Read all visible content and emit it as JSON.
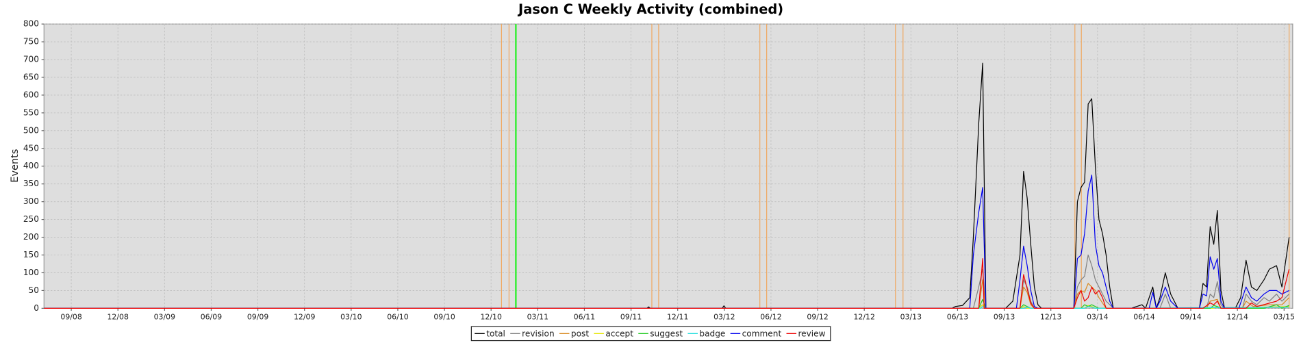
{
  "chart_data": {
    "type": "line",
    "title": "Jason C Weekly Activity (combined)",
    "ylabel": "Events",
    "xlim": [
      0,
      348
    ],
    "ylim": [
      0,
      800
    ],
    "yticks": [
      0,
      50,
      100,
      150,
      200,
      250,
      300,
      350,
      400,
      450,
      500,
      550,
      600,
      650,
      700,
      750,
      800
    ],
    "xticks": [
      {
        "value": 7.6,
        "label": "09/08"
      },
      {
        "value": 20.6,
        "label": "12/08"
      },
      {
        "value": 33.6,
        "label": "03/09"
      },
      {
        "value": 46.6,
        "label": "06/09"
      },
      {
        "value": 59.6,
        "label": "09/09"
      },
      {
        "value": 72.6,
        "label": "12/09"
      },
      {
        "value": 85.6,
        "label": "03/10"
      },
      {
        "value": 98.6,
        "label": "06/10"
      },
      {
        "value": 111.6,
        "label": "09/10"
      },
      {
        "value": 124.6,
        "label": "12/10"
      },
      {
        "value": 137.6,
        "label": "03/11"
      },
      {
        "value": 150.6,
        "label": "06/11"
      },
      {
        "value": 163.6,
        "label": "09/11"
      },
      {
        "value": 176.6,
        "label": "12/11"
      },
      {
        "value": 189.6,
        "label": "03/12"
      },
      {
        "value": 202.6,
        "label": "06/12"
      },
      {
        "value": 215.6,
        "label": "09/12"
      },
      {
        "value": 228.6,
        "label": "12/12"
      },
      {
        "value": 241.6,
        "label": "03/13"
      },
      {
        "value": 254.6,
        "label": "06/13"
      },
      {
        "value": 267.6,
        "label": "09/13"
      },
      {
        "value": 280.6,
        "label": "12/13"
      },
      {
        "value": 293.6,
        "label": "03/14"
      },
      {
        "value": 306.6,
        "label": "06/14"
      },
      {
        "value": 319.6,
        "label": "09/14"
      },
      {
        "value": 332.6,
        "label": "12/14"
      },
      {
        "value": 345.6,
        "label": "03/15"
      }
    ],
    "grid": true,
    "legend": "bottom",
    "markers": [
      {
        "value": 127.5,
        "color": "#f0a860"
      },
      {
        "value": 129.6,
        "color": "#f0a860"
      },
      {
        "value": 131.5,
        "color": "#33ee33"
      },
      {
        "value": 169.4,
        "color": "#f0a860"
      },
      {
        "value": 171.3,
        "color": "#f0a860"
      },
      {
        "value": 199.5,
        "color": "#f0a860"
      },
      {
        "value": 201.4,
        "color": "#f0a860"
      },
      {
        "value": 237.3,
        "color": "#f0a860"
      },
      {
        "value": 239.4,
        "color": "#f0a860"
      },
      {
        "value": 287.3,
        "color": "#f0a860"
      },
      {
        "value": 289.1,
        "color": "#f0a860"
      },
      {
        "value": 347,
        "color": "#f0a860"
      }
    ],
    "series": [
      {
        "name": "total",
        "color": "#000000",
        "x": [
          0,
          168,
          168.5,
          169,
          189,
          189.5,
          190,
          253,
          254,
          256,
          258,
          259,
          260.5,
          261.6,
          262.5,
          268,
          270,
          272,
          273,
          274,
          275,
          276,
          277,
          278,
          287,
          288,
          289,
          290,
          291,
          292,
          293,
          294,
          295,
          296,
          297,
          298,
          303,
          306,
          307,
          309,
          310,
          311,
          312.5,
          314,
          316,
          322,
          323,
          324,
          325,
          326,
          327,
          328,
          329,
          332,
          333.5,
          335,
          336.5,
          338,
          340,
          341.5,
          343.5,
          345,
          347
        ],
        "values": [
          0,
          0,
          4,
          0,
          0,
          7,
          0,
          0,
          5,
          8,
          30,
          200,
          520,
          690,
          0,
          0,
          20,
          150,
          385,
          310,
          180,
          60,
          10,
          0,
          0,
          300,
          340,
          355,
          575,
          590,
          400,
          250,
          210,
          150,
          60,
          0,
          0,
          10,
          0,
          60,
          0,
          30,
          100,
          40,
          0,
          0,
          70,
          60,
          230,
          180,
          275,
          50,
          0,
          0,
          30,
          135,
          60,
          50,
          80,
          110,
          120,
          60,
          200
        ]
      },
      {
        "name": "revision",
        "color": "#808080",
        "x": [
          0,
          259,
          260.5,
          261.6,
          262.5,
          272,
          273,
          274,
          275,
          276,
          287,
          288,
          289,
          290,
          291,
          292,
          293,
          294,
          295,
          296,
          298,
          311,
          312.5,
          314,
          324,
          325,
          326,
          327,
          328,
          329,
          334,
          335,
          336.5,
          338,
          340,
          341.5,
          343.5,
          345,
          347
        ],
        "values": [
          0,
          0,
          60,
          110,
          0,
          0,
          80,
          60,
          20,
          0,
          0,
          60,
          80,
          90,
          150,
          120,
          80,
          60,
          40,
          20,
          0,
          0,
          40,
          0,
          0,
          40,
          30,
          75,
          10,
          0,
          0,
          40,
          20,
          10,
          30,
          20,
          40,
          20,
          40
        ]
      },
      {
        "name": "post",
        "color": "#d88a20",
        "x": [
          0,
          260.5,
          261.6,
          262.5,
          272,
          273,
          274,
          275,
          276,
          287,
          288,
          289,
          290,
          291,
          292,
          293,
          294,
          295,
          296,
          324,
          325,
          327,
          328,
          334,
          335,
          337,
          341.5,
          345,
          347
        ],
        "values": [
          0,
          0,
          80,
          0,
          0,
          60,
          45,
          10,
          0,
          0,
          40,
          50,
          45,
          70,
          60,
          50,
          30,
          15,
          0,
          0,
          20,
          25,
          0,
          0,
          20,
          5,
          10,
          10,
          30
        ]
      },
      {
        "name": "accept",
        "color": "#e6e600",
        "x": [
          0,
          260.5,
          261.6,
          262.5,
          272.5,
          273,
          274,
          290,
          291,
          292,
          293,
          326,
          327,
          328,
          347
        ],
        "values": [
          0,
          0,
          10,
          0,
          0,
          5,
          0,
          0,
          8,
          5,
          0,
          0,
          5,
          0,
          5
        ]
      },
      {
        "name": "suggest",
        "color": "#22cc22",
        "x": [
          0,
          260.5,
          261.6,
          262.5,
          272,
          273,
          274,
          275,
          289,
          290,
          291,
          292,
          293,
          294,
          325,
          326,
          327,
          328,
          340,
          343.5,
          345,
          347
        ],
        "values": [
          0,
          0,
          25,
          0,
          0,
          10,
          5,
          0,
          0,
          10,
          5,
          10,
          5,
          0,
          0,
          8,
          5,
          0,
          0,
          10,
          0,
          8
        ]
      },
      {
        "name": "badge",
        "color": "#22dddd",
        "x": [
          0,
          261,
          261.6,
          262.5,
          273,
          274,
          275,
          290,
          291,
          292,
          293,
          347
        ],
        "values": [
          0,
          0,
          5,
          0,
          0,
          3,
          0,
          0,
          5,
          3,
          0,
          3
        ]
      },
      {
        "name": "comment",
        "color": "#0000ee",
        "x": [
          0,
          258,
          259,
          260.5,
          261.6,
          262.5,
          271,
          272,
          273,
          274,
          275,
          276,
          277,
          287,
          288,
          289,
          290,
          291,
          292,
          293,
          294,
          295,
          296,
          297,
          298,
          308,
          309,
          310,
          311,
          312.5,
          314,
          316,
          322,
          323,
          324,
          325,
          326,
          327,
          328,
          329,
          333,
          335,
          336.5,
          338,
          340,
          341.5,
          343.5,
          345,
          347
        ],
        "values": [
          0,
          0,
          150,
          270,
          340,
          0,
          0,
          80,
          175,
          120,
          50,
          5,
          0,
          0,
          140,
          150,
          210,
          330,
          375,
          180,
          120,
          100,
          60,
          20,
          0,
          0,
          45,
          0,
          20,
          60,
          20,
          0,
          0,
          40,
          35,
          145,
          110,
          140,
          20,
          0,
          0,
          60,
          30,
          20,
          40,
          50,
          50,
          40,
          50
        ]
      },
      {
        "name": "review",
        "color": "#ee0000",
        "x": [
          0,
          260.5,
          261.6,
          262,
          272,
          273,
          274,
          275,
          276,
          287,
          288,
          289,
          290,
          291,
          292,
          293,
          294,
          295,
          296,
          323,
          325,
          326,
          327,
          328,
          335,
          336.5,
          338,
          343.5,
          345,
          347
        ],
        "values": [
          0,
          0,
          140,
          0,
          0,
          95,
          55,
          15,
          0,
          0,
          30,
          50,
          20,
          30,
          60,
          40,
          50,
          30,
          0,
          0,
          15,
          10,
          20,
          0,
          0,
          15,
          5,
          20,
          30,
          110
        ]
      }
    ]
  }
}
